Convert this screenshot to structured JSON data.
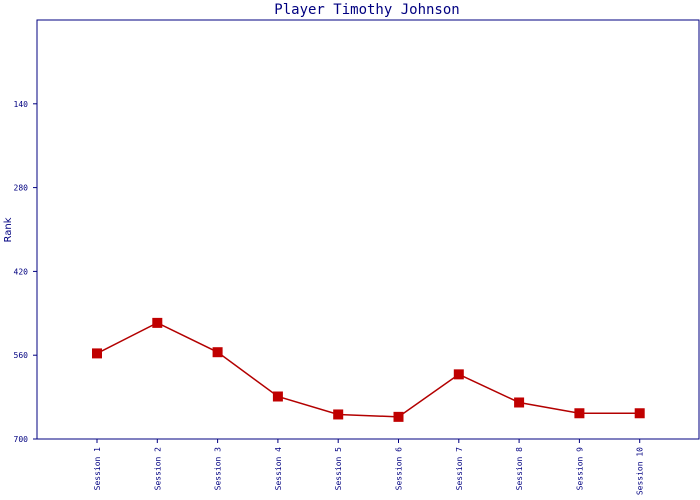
{
  "colors": {
    "axis": "#000080",
    "series": "#b30000",
    "marker": "#c00000"
  },
  "chart_data": {
    "type": "line",
    "title": "Player Timothy Johnson",
    "xlabel": "",
    "ylabel": "Rank",
    "ylim": [
      700,
      0
    ],
    "y_inverted": true,
    "yticks": [
      140,
      280,
      420,
      560,
      700
    ],
    "grid": false,
    "categories": [
      "Session 1",
      "Session 2",
      "Session 3",
      "Session 4",
      "Session 5",
      "Session 6",
      "Session 7",
      "Session 8",
      "Session 9",
      "Session 10"
    ],
    "series": [
      {
        "values": [
          557,
          506,
          555,
          629,
          659,
          663,
          592,
          639,
          657,
          657
        ],
        "marker": "square"
      }
    ]
  }
}
